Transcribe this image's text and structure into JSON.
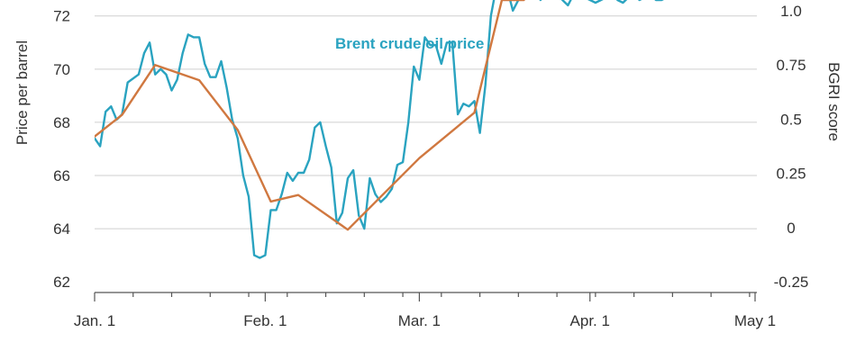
{
  "chart_data": {
    "type": "line",
    "title": "",
    "xlabel": "",
    "ylabel": "Price per barrel",
    "y2label": "BGRI score",
    "x_ticks": [
      "Jan. 1",
      "Feb. 1",
      "Mar. 1",
      "Apr. 1",
      "May 1"
    ],
    "y_ticks": [
      62,
      64,
      66,
      68,
      70,
      72
    ],
    "y2_ticks": [
      "-0.25",
      "0",
      "0.25",
      "0.5",
      "0.75",
      "1.0"
    ],
    "x_range_days": [
      0,
      120
    ],
    "ylim": [
      61.6,
      72.6
    ],
    "y2lim": [
      -0.3,
      1.05
    ],
    "grid": true,
    "series": [
      {
        "name": "Brent crude oil price",
        "axis": "left",
        "color": "#2aa3c0",
        "x": [
          0,
          1,
          2,
          3,
          4,
          5,
          6,
          8,
          9,
          10,
          11,
          12,
          13,
          14,
          15,
          16,
          17,
          18,
          19,
          20,
          21,
          22,
          23,
          24,
          25,
          26,
          27,
          28,
          29,
          30,
          31,
          32,
          33,
          34,
          35,
          36,
          37,
          38,
          39,
          40,
          41,
          42,
          43,
          44,
          45,
          46,
          47,
          48,
          49,
          50,
          51,
          52,
          53,
          54,
          55,
          56,
          57,
          58,
          59,
          60,
          61,
          62,
          63,
          64,
          65,
          66,
          67,
          68,
          69,
          70,
          71,
          72,
          73,
          74,
          75,
          76,
          77,
          78,
          79,
          80,
          81,
          82,
          83,
          84,
          85,
          86,
          87,
          88,
          89,
          90,
          91,
          92,
          93,
          94,
          95,
          96,
          97,
          98,
          99,
          100,
          101,
          102,
          103,
          104,
          105,
          106
        ],
        "y": [
          67.4,
          67.1,
          68.4,
          68.6,
          68.1,
          68.3,
          69.5,
          69.8,
          70.6,
          71.0,
          69.8,
          70.0,
          69.8,
          69.2,
          69.6,
          70.6,
          71.3,
          71.2,
          71.2,
          70.2,
          69.7,
          69.7,
          70.3,
          69.3,
          68.1,
          67.4,
          66.0,
          65.2,
          63.0,
          62.9,
          63.0,
          64.7,
          64.7,
          65.3,
          66.1,
          65.8,
          66.1,
          66.1,
          66.6,
          67.8,
          68.0,
          67.1,
          66.3,
          64.2,
          64.6,
          65.9,
          66.2,
          64.5,
          64.0,
          65.9,
          65.3,
          65.0,
          65.2,
          65.5,
          66.4,
          66.5,
          68.0,
          70.1,
          69.6,
          71.2,
          70.9,
          70.9,
          70.2,
          71.0,
          71.0,
          68.3,
          68.7,
          68.6,
          68.8,
          67.6,
          69.4,
          72.0,
          73.1,
          72.8,
          73.0,
          72.2,
          72.6,
          73.2,
          73.4,
          73.0,
          72.6,
          72.8,
          73.0,
          72.9,
          72.6,
          72.4,
          72.8,
          73.0,
          72.7,
          72.6,
          72.5,
          72.6,
          72.7,
          72.9,
          72.6,
          72.5,
          72.7,
          72.8,
          72.6,
          72.7,
          72.8,
          72.6,
          72.6,
          72.7,
          72.8,
          72.7
        ]
      },
      {
        "name": "",
        "axis": "right",
        "color": "#d07840",
        "x": [
          0,
          5,
          11,
          19,
          26,
          32,
          37,
          46,
          59,
          69,
          74,
          78
        ],
        "y": [
          0.42,
          0.52,
          0.75,
          0.68,
          0.45,
          0.12,
          0.15,
          -0.01,
          0.32,
          0.53,
          1.05,
          1.05
        ]
      }
    ]
  }
}
